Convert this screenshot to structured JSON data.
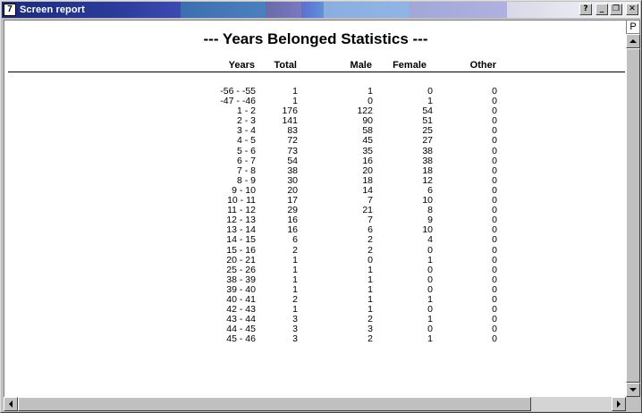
{
  "window": {
    "title": "Screen report",
    "app_icon": "report-app-icon",
    "buttons": {
      "help": "?",
      "minimize": "_",
      "restore": "❐",
      "close": "✕"
    }
  },
  "report": {
    "title": "---  Years Belonged Statistics  ---",
    "headers": {
      "years": "Years",
      "total": "Total",
      "male": "Male",
      "female": "Female",
      "other": "Other"
    },
    "rows": [
      {
        "years": "-56 - -55",
        "total": "1",
        "male": "1",
        "female": "0",
        "other": "0"
      },
      {
        "years": "-47 - -46",
        "total": "1",
        "male": "0",
        "female": "1",
        "other": "0"
      },
      {
        "years": "1 - 2",
        "total": "176",
        "male": "122",
        "female": "54",
        "other": "0"
      },
      {
        "years": "2 - 3",
        "total": "141",
        "male": "90",
        "female": "51",
        "other": "0"
      },
      {
        "years": "3 - 4",
        "total": "83",
        "male": "58",
        "female": "25",
        "other": "0"
      },
      {
        "years": "4 - 5",
        "total": "72",
        "male": "45",
        "female": "27",
        "other": "0"
      },
      {
        "years": "5 - 6",
        "total": "73",
        "male": "35",
        "female": "38",
        "other": "0"
      },
      {
        "years": "6 - 7",
        "total": "54",
        "male": "16",
        "female": "38",
        "other": "0"
      },
      {
        "years": "7 - 8",
        "total": "38",
        "male": "20",
        "female": "18",
        "other": "0"
      },
      {
        "years": "8 - 9",
        "total": "30",
        "male": "18",
        "female": "12",
        "other": "0"
      },
      {
        "years": "9 - 10",
        "total": "20",
        "male": "14",
        "female": "6",
        "other": "0"
      },
      {
        "years": "10 - 11",
        "total": "17",
        "male": "7",
        "female": "10",
        "other": "0"
      },
      {
        "years": "11 - 12",
        "total": "29",
        "male": "21",
        "female": "8",
        "other": "0"
      },
      {
        "years": "12 - 13",
        "total": "16",
        "male": "7",
        "female": "9",
        "other": "0"
      },
      {
        "years": "13 - 14",
        "total": "16",
        "male": "6",
        "female": "10",
        "other": "0"
      },
      {
        "years": "14 - 15",
        "total": "6",
        "male": "2",
        "female": "4",
        "other": "0"
      },
      {
        "years": "15 - 16",
        "total": "2",
        "male": "2",
        "female": "0",
        "other": "0"
      },
      {
        "years": "20 - 21",
        "total": "1",
        "male": "0",
        "female": "1",
        "other": "0"
      },
      {
        "years": "25 - 26",
        "total": "1",
        "male": "1",
        "female": "0",
        "other": "0"
      },
      {
        "years": "38 - 39",
        "total": "1",
        "male": "1",
        "female": "0",
        "other": "0"
      },
      {
        "years": "39 - 40",
        "total": "1",
        "male": "1",
        "female": "0",
        "other": "0"
      },
      {
        "years": "40 - 41",
        "total": "2",
        "male": "1",
        "female": "1",
        "other": "0"
      },
      {
        "years": "42 - 43",
        "total": "1",
        "male": "1",
        "female": "0",
        "other": "0"
      },
      {
        "years": "43 - 44",
        "total": "3",
        "male": "2",
        "female": "1",
        "other": "0"
      },
      {
        "years": "44 - 45",
        "total": "3",
        "male": "3",
        "female": "0",
        "other": "0"
      },
      {
        "years": "45 - 46",
        "total": "3",
        "male": "2",
        "female": "1",
        "other": "0"
      }
    ]
  },
  "scrollbars": {
    "page_button": "P"
  }
}
